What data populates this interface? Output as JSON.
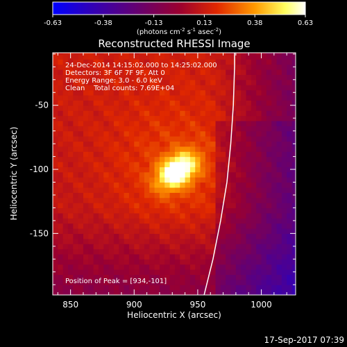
{
  "chart_data": {
    "type": "heatmap",
    "title": "Reconstructed RHESSI Image",
    "xlabel": "Heliocentric X (arcsec)",
    "ylabel": "Heliocentric Y (arcsec)",
    "xlim": [
      836,
      1027
    ],
    "ylim": [
      -198,
      -9
    ],
    "x_ticks": [
      850,
      900,
      950,
      1000
    ],
    "y_ticks": [
      -50,
      -100,
      -150
    ],
    "colorbar": {
      "label": "(photons cm",
      "label_exp1": "-2",
      "label_mid": " s",
      "label_exp2": "-1",
      "label_mid2": " asec",
      "label_exp3": "-2",
      "label_end": ")",
      "range": [
        -0.63,
        0.63
      ],
      "ticks": [
        "-0.63",
        "-0.38",
        "-0.13",
        "0.13",
        "0.38",
        "0.63"
      ],
      "colormap": [
        "#0000ff",
        "#40007a",
        "#7a0050",
        "#d42000",
        "#ff9a00",
        "#ffff80",
        "#ffffff"
      ]
    },
    "annotations": [
      "24-Dec-2014 14:15:02.000 to 14:25:02.000",
      "Detectors: 3F 6F 7F 9F, Att 0",
      "Energy Range: 3.0 - 6.0 keV",
      "Clean    Total counts: 7.69E+04"
    ],
    "peak_label": "Position of Peak = [934,-101]",
    "peak": {
      "x": 934,
      "y": -101,
      "value": 0.63
    },
    "limb_curve": [
      [
        955,
        -198
      ],
      [
        962,
        -170
      ],
      [
        968,
        -140
      ],
      [
        973,
        -110
      ],
      [
        976,
        -80
      ],
      [
        978,
        -50
      ],
      [
        979,
        -20
      ],
      [
        979,
        -9
      ]
    ]
  },
  "footer": {
    "timestamp": "17-Sep-2017 07:39"
  }
}
